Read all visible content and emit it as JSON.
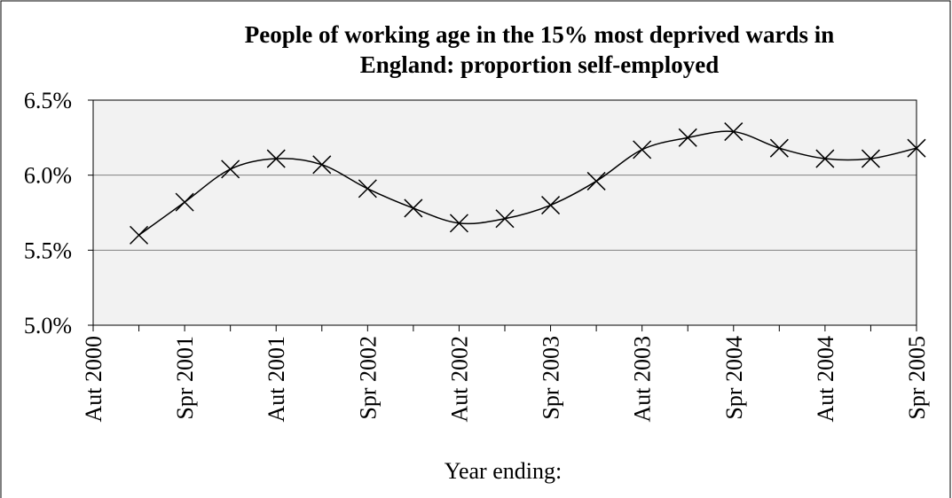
{
  "chart_data": {
    "type": "line",
    "title": [
      "People of working age in the 15% most deprived wards in",
      "England: proportion self-employed"
    ],
    "x_label": "Year ending:",
    "categories": [
      "Aut 2000",
      null,
      "Spr 2001",
      null,
      "Aut 2001",
      null,
      "Spr 2002",
      null,
      "Aut 2002",
      null,
      "Spr 2003",
      null,
      "Aut 2003",
      null,
      "Spr 2004",
      null,
      "Aut 2004",
      null,
      "Spr 2005"
    ],
    "series": [
      {
        "color": "#000000",
        "values": [
          null,
          5.6,
          5.82,
          6.04,
          6.11,
          6.07,
          5.91,
          5.78,
          5.68,
          5.71,
          5.8,
          5.96,
          6.17,
          6.25,
          6.29,
          6.18,
          6.11,
          6.11,
          6.18
        ]
      }
    ],
    "ylim": [
      5.0,
      6.5
    ],
    "yticks": [
      {
        "value": 5.0,
        "label": "5.0%"
      },
      {
        "value": 5.5,
        "label": "5.5%"
      },
      {
        "value": 6.0,
        "label": "6.0%"
      },
      {
        "value": 6.5,
        "label": "6.5%"
      }
    ],
    "grid": true,
    "smooth": true,
    "marker": "x",
    "plot_background": "#f2f2f2"
  }
}
